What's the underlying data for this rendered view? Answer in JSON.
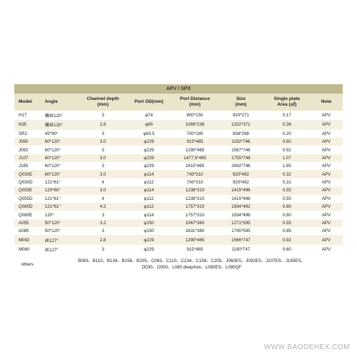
{
  "title": "APV / SPX",
  "columns": [
    {
      "key": "model",
      "label": "Model",
      "align": "left"
    },
    {
      "key": "angle",
      "label": "Angle",
      "align": "left"
    },
    {
      "key": "depth",
      "label": "Channel depth\n(mm)",
      "align": "center"
    },
    {
      "key": "port",
      "label": "Port OD(mm)",
      "align": "center"
    },
    {
      "key": "dist",
      "label": "Port Distance\n(mm)",
      "align": "center"
    },
    {
      "key": "size",
      "label": "Size\n(mm)",
      "align": "center"
    },
    {
      "key": "area",
      "label": "Single plate\nArea (㎡)",
      "align": "center"
    },
    {
      "key": "note",
      "label": "Note",
      "align": "center"
    }
  ],
  "rows": [
    {
      "model": "H17",
      "angle": "横丝120°",
      "depth": "3",
      "port": "φ74",
      "dist": "800*150",
      "size": "920*271",
      "area": "0.17",
      "note": "APV"
    },
    {
      "model": "N35",
      "angle": "横丝120°",
      "depth": "2.8",
      "port": "φ85",
      "dist": "1069*238",
      "size": "1202*371",
      "area": "0.36",
      "note": "APV"
    },
    {
      "model": "SR2",
      "angle": "45*90°",
      "depth": "3",
      "port": "φ63.5",
      "dist": "700*180",
      "size": "838*298",
      "area": "0.20",
      "note": "APV"
    },
    {
      "model": "J060",
      "angle": "60*120°",
      "depth": "3.0",
      "port": "φ229",
      "dist": "915*465",
      "size": "1192*746",
      "area": "0.60",
      "note": "APV"
    },
    {
      "model": "J092",
      "angle": "60*120°",
      "depth": "3",
      "port": "φ229",
      "dist": "1290*465",
      "size": "1567*746",
      "area": "0.92",
      "note": "APV"
    },
    {
      "model": "J107",
      "angle": "60*120°",
      "depth": "3.0",
      "port": "φ229",
      "dist": "1477.5*465",
      "size": "1755*746",
      "area": "1.07",
      "note": "APV"
    },
    {
      "model": "J185",
      "angle": "60*120°",
      "depth": "3",
      "port": "φ229",
      "dist": "2415*465",
      "size": "2692*746",
      "area": "1.85",
      "note": "APV"
    },
    {
      "model": "Q030E",
      "angle": "60*120°",
      "depth": "3.0",
      "port": "φ114",
      "dist": "743*310",
      "size": "920*492",
      "area": "0.32",
      "note": "APV"
    },
    {
      "model": "Q030D",
      "angle": "121*61°",
      "depth": "4",
      "port": "φ112",
      "dist": "743*310",
      "size": "920*492",
      "area": "0.31",
      "note": "APV"
    },
    {
      "model": "Q055E",
      "angle": "120*60°",
      "depth": "3.0",
      "port": "φ114",
      "dist": "1238*310",
      "size": "1415*496",
      "area": "0.55",
      "note": "APV"
    },
    {
      "model": "Q055D",
      "angle": "121*61°",
      "depth": "4",
      "port": "φ112",
      "dist": "1238*310",
      "size": "1415*496",
      "area": "0.55",
      "note": "APV"
    },
    {
      "model": "Q080D",
      "angle": "121*61°",
      "depth": "4.2",
      "port": "φ112",
      "dist": "1757*310",
      "size": "1934*492",
      "area": "0.80",
      "note": "APV"
    },
    {
      "model": "Q080E",
      "angle": "120°",
      "depth": "3",
      "port": "φ114",
      "dist": "1757*310",
      "size": "1934*496",
      "area": "0.80",
      "note": "APV"
    },
    {
      "model": "A055",
      "angle": "50*120°",
      "depth": "3.2",
      "port": "φ150",
      "dist": "1067*380",
      "size": "1271*595",
      "area": "0.55",
      "note": "APV"
    },
    {
      "model": "A085",
      "angle": "50*120°",
      "depth": "3",
      "port": "φ150",
      "dist": "1631*380",
      "size": "1745*595",
      "area": "0.85",
      "note": "APV"
    },
    {
      "model": "M092",
      "angle": "丝127°",
      "depth": "2.8",
      "port": "φ229",
      "dist": "1290*465",
      "size": "1566*747",
      "area": "0.92",
      "note": "APV"
    },
    {
      "model": "M060",
      "angle": "丝127°",
      "depth": "3",
      "port": "φ229",
      "dist": "915*465",
      "size": "1190*747",
      "area": "0.60",
      "note": "APV"
    }
  ],
  "others": {
    "label": "others",
    "text1": "B063、B110、B134、B158、B205、C063、C110、C134、C158、C205、J060ES、J092ES、J107ES、J185ES、",
    "text2": "O030、O050、L080 deep/low、L080ES、L080QF"
  },
  "watermark": "WWW.BAODEHEX.COM"
}
